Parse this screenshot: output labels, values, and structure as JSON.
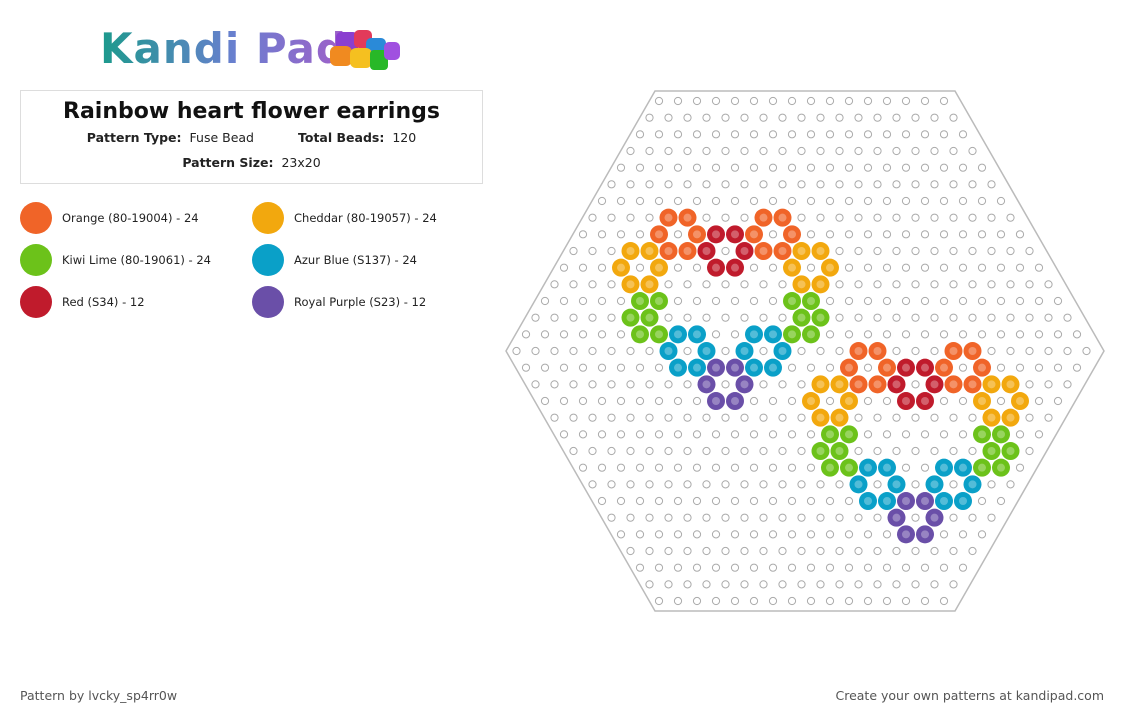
{
  "logo": {
    "text": "Kandi Pad"
  },
  "header": {
    "title": "Rainbow heart flower earrings",
    "pattern_type_label": "Pattern Type:",
    "pattern_type": "Fuse Bead",
    "total_beads_label": "Total Beads:",
    "total_beads": "120",
    "pattern_size_label": "Pattern Size:",
    "pattern_size": "23x20"
  },
  "legend": [
    {
      "name": "Orange (80-19004) - 24",
      "color": "#f06428"
    },
    {
      "name": "Cheddar (80-19057) - 24",
      "color": "#f2a80e"
    },
    {
      "name": "Kiwi Lime (80-19061) - 24",
      "color": "#6cc21a"
    },
    {
      "name": "Azur Blue (S137) - 24",
      "color": "#0aa0c8"
    },
    {
      "name": "Red (S34) - 12",
      "color": "#c01b2c"
    },
    {
      "name": "Royal Purple (S23) - 12",
      "color": "#6a4fa8"
    }
  ],
  "footer": {
    "author": "Pattern by lvcky_sp4rr0w",
    "credit": "Create your own patterns at kandipad.com"
  }
}
